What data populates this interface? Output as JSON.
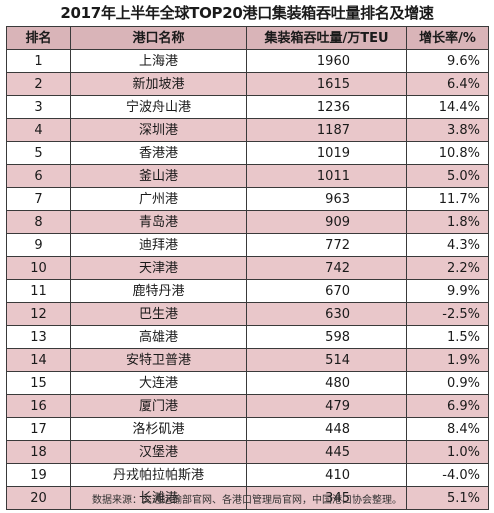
{
  "title": "2017年上半年全球TOP20港口集装箱吞吐量排名及增速",
  "headers": {
    "rank": "排名",
    "port": "港口名称",
    "teu": "集装箱吞吐量/万TEU",
    "growth": "增长率/%"
  },
  "rows": [
    {
      "rank": "1",
      "port": "上海港",
      "teu": "1960",
      "growth": "9.6%"
    },
    {
      "rank": "2",
      "port": "新加坡港",
      "teu": "1615",
      "growth": "6.4%"
    },
    {
      "rank": "3",
      "port": "宁波舟山港",
      "teu": "1236",
      "growth": "14.4%"
    },
    {
      "rank": "4",
      "port": "深圳港",
      "teu": "1187",
      "growth": "3.8%"
    },
    {
      "rank": "5",
      "port": "香港港",
      "teu": "1019",
      "growth": "10.8%"
    },
    {
      "rank": "6",
      "port": "釜山港",
      "teu": "1011",
      "growth": "5.0%"
    },
    {
      "rank": "7",
      "port": "广州港",
      "teu": "963",
      "growth": "11.7%"
    },
    {
      "rank": "8",
      "port": "青岛港",
      "teu": "909",
      "growth": "1.8%"
    },
    {
      "rank": "9",
      "port": "迪拜港",
      "teu": "772",
      "growth": "4.3%"
    },
    {
      "rank": "10",
      "port": "天津港",
      "teu": "742",
      "growth": "2.2%"
    },
    {
      "rank": "11",
      "port": "鹿特丹港",
      "teu": "670",
      "growth": "9.9%"
    },
    {
      "rank": "12",
      "port": "巴生港",
      "teu": "630",
      "growth": "-2.5%"
    },
    {
      "rank": "13",
      "port": "高雄港",
      "teu": "598",
      "growth": "1.5%"
    },
    {
      "rank": "14",
      "port": "安特卫普港",
      "teu": "514",
      "growth": "1.9%"
    },
    {
      "rank": "15",
      "port": "大连港",
      "teu": "480",
      "growth": "0.9%"
    },
    {
      "rank": "16",
      "port": "厦门港",
      "teu": "479",
      "growth": "6.9%"
    },
    {
      "rank": "17",
      "port": "洛杉矶港",
      "teu": "448",
      "growth": "8.4%"
    },
    {
      "rank": "18",
      "port": "汉堡港",
      "teu": "445",
      "growth": "1.0%"
    },
    {
      "rank": "19",
      "port": "丹戎帕拉帕斯港",
      "teu": "410",
      "growth": "-4.0%"
    },
    {
      "rank": "20",
      "port": "长滩港",
      "teu": "345",
      "growth": "5.1%"
    }
  ],
  "source": "数据来源：交通运输部官网、各港口管理局官网，中国港口协会整理。",
  "colors": {
    "header_bg": "#d9b4b8",
    "pink_row": "#e9c7ca",
    "white_row": "#ffffff",
    "border": "#3a3a3a"
  }
}
